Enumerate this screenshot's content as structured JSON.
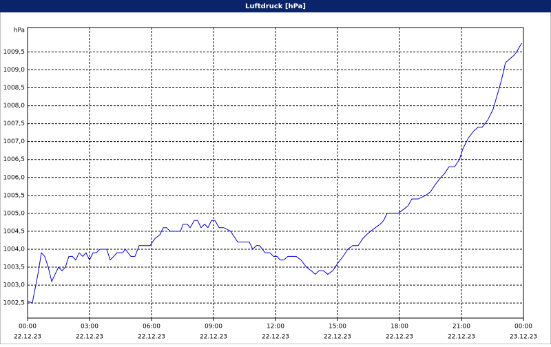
{
  "chart_data": {
    "type": "line",
    "title": "Luftdruck [hPa]",
    "y_label": "hPa",
    "x": [
      0,
      0.23,
      0.5,
      0.67,
      0.83,
      1,
      1.17,
      1.33,
      1.5,
      1.67,
      1.83,
      2,
      2.17,
      2.33,
      2.5,
      2.67,
      2.83,
      3,
      3.17,
      3.33,
      3.5,
      3.83,
      4,
      4.17,
      4.33,
      4.6,
      4.73,
      5,
      5.2,
      5.4,
      5.67,
      5.93,
      6.17,
      6.4,
      6.57,
      6.73,
      6.9,
      7.17,
      7.4,
      7.53,
      7.73,
      7.87,
      8.07,
      8.23,
      8.4,
      8.57,
      8.73,
      8.9,
      9.07,
      9.27,
      9.5,
      9.83,
      10.17,
      10.5,
      10.73,
      10.9,
      11.07,
      11.23,
      11.5,
      11.73,
      11.9,
      12.07,
      12.23,
      12.4,
      12.6,
      13,
      13.23,
      13.5,
      13.73,
      13.93,
      14.1,
      14.33,
      14.53,
      14.77,
      15,
      15.27,
      15.5,
      15.73,
      16,
      16.23,
      16.4,
      16.6,
      16.83,
      17.07,
      17.23,
      17.4,
      17.67,
      17.93,
      18.17,
      18.4,
      18.6,
      18.9,
      19.27,
      19.5,
      19.73,
      20,
      20.17,
      20.4,
      20.67,
      20.9,
      21.07,
      21.33,
      21.6,
      21.8,
      22,
      22.27,
      22.53,
      22.73,
      22.93,
      23.13,
      23.33,
      23.53,
      23.67,
      23.87,
      23.93
    ],
    "series": [
      {
        "name": "Luftdruck",
        "color": "#0000d0",
        "values": [
          1002.55,
          1002.5,
          1003.3,
          1003.9,
          1003.8,
          1003.5,
          1003.1,
          1003.3,
          1003.5,
          1003.4,
          1003.5,
          1003.8,
          1003.8,
          1003.7,
          1003.9,
          1003.8,
          1003.9,
          1003.7,
          1003.9,
          1003.9,
          1004.0,
          1004.0,
          1003.7,
          1003.8,
          1003.9,
          1003.9,
          1004.0,
          1003.8,
          1003.8,
          1004.1,
          1004.1,
          1004.1,
          1004.3,
          1004.4,
          1004.6,
          1004.6,
          1004.5,
          1004.5,
          1004.5,
          1004.7,
          1004.7,
          1004.6,
          1004.8,
          1004.8,
          1004.6,
          1004.7,
          1004.6,
          1004.8,
          1004.8,
          1004.6,
          1004.6,
          1004.5,
          1004.2,
          1004.2,
          1004.2,
          1004.0,
          1004.1,
          1004.1,
          1003.9,
          1003.9,
          1003.8,
          1003.8,
          1003.7,
          1003.7,
          1003.8,
          1003.8,
          1003.7,
          1003.5,
          1003.4,
          1003.3,
          1003.4,
          1003.4,
          1003.3,
          1003.4,
          1003.6,
          1003.8,
          1004.0,
          1004.1,
          1004.1,
          1004.3,
          1004.4,
          1004.5,
          1004.6,
          1004.7,
          1004.8,
          1005.0,
          1005.0,
          1005.0,
          1005.1,
          1005.2,
          1005.4,
          1005.4,
          1005.5,
          1005.6,
          1005.8,
          1006.0,
          1006.1,
          1006.3,
          1006.3,
          1006.5,
          1006.8,
          1007.1,
          1007.3,
          1007.4,
          1007.4,
          1007.6,
          1007.9,
          1008.3,
          1008.7,
          1009.2,
          1009.3,
          1009.4,
          1009.5,
          1009.7,
          1009.75
        ]
      }
    ],
    "xlim": [
      0,
      24
    ],
    "xticks": [
      {
        "value": 0,
        "label": "00:00"
      },
      {
        "value": 3,
        "label": "03:00"
      },
      {
        "value": 6,
        "label": "06:00"
      },
      {
        "value": 9,
        "label": "09:00"
      },
      {
        "value": 12,
        "label": "12:00"
      },
      {
        "value": 15,
        "label": "15:00"
      },
      {
        "value": 18,
        "label": "18:00"
      },
      {
        "value": 21,
        "label": "21:00"
      },
      {
        "value": 24,
        "label": "00:00"
      }
    ],
    "xtick_dates": [
      "22.12.23",
      "22.12.23",
      "22.12.23",
      "22.12.23",
      "22.12.23",
      "22.12.23",
      "22.12.23",
      "22.12.23",
      "23.12.23"
    ],
    "ylim": [
      1002.08,
      1010.18
    ],
    "yticks": [
      {
        "value": 1002.5,
        "label": "1002,5"
      },
      {
        "value": 1003,
        "label": "1003,0"
      },
      {
        "value": 1003.5,
        "label": "1003,5"
      },
      {
        "value": 1004,
        "label": "1004,0"
      },
      {
        "value": 1004.5,
        "label": "1004,5"
      },
      {
        "value": 1005,
        "label": "1005,0"
      },
      {
        "value": 1005.5,
        "label": "1005,5"
      },
      {
        "value": 1006,
        "label": "1006,0"
      },
      {
        "value": 1006.5,
        "label": "1006,5"
      },
      {
        "value": 1007,
        "label": "1007,0"
      },
      {
        "value": 1007.5,
        "label": "1007,5"
      },
      {
        "value": 1008,
        "label": "1008,0"
      },
      {
        "value": 1008.5,
        "label": "1008,5"
      },
      {
        "value": 1009,
        "label": "1009,0"
      },
      {
        "value": 1009.5,
        "label": "1009,5"
      }
    ],
    "grid": true
  }
}
